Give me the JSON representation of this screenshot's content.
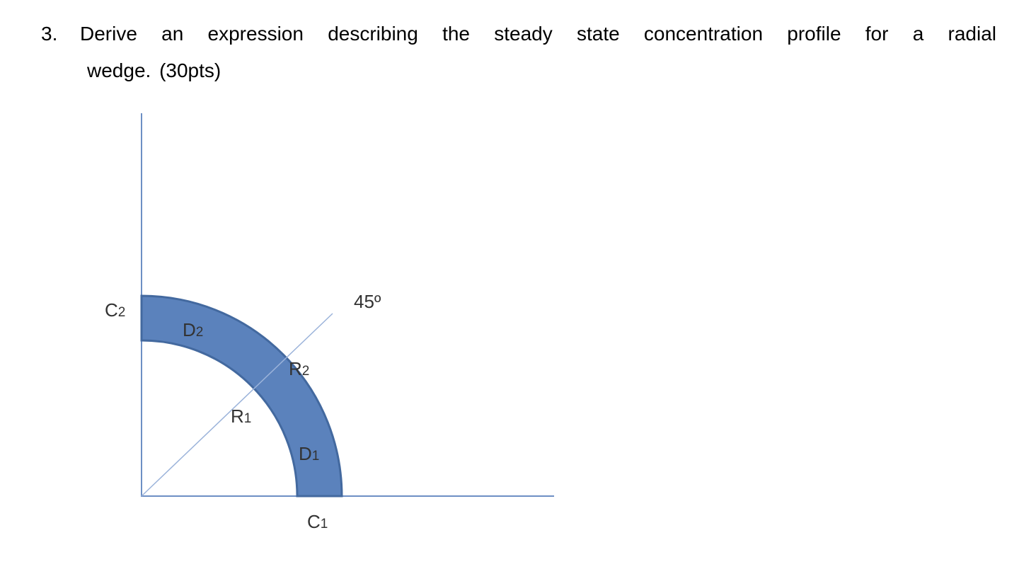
{
  "question": {
    "number": "3.",
    "lines": [
      "Derive an expression describing the steady state concentration profile for a radial",
      "wedge. (30pts)"
    ]
  },
  "figure": {
    "labels": [
      {
        "letter": "C",
        "index": "2"
      },
      {
        "letter": "D",
        "index": "2"
      },
      {
        "letter": "R",
        "index": "2"
      },
      {
        "letter": "R",
        "index": "1"
      },
      {
        "letter": "D",
        "index": "1"
      },
      {
        "letter": "C",
        "index": "1"
      }
    ],
    "angle": "45º"
  }
}
